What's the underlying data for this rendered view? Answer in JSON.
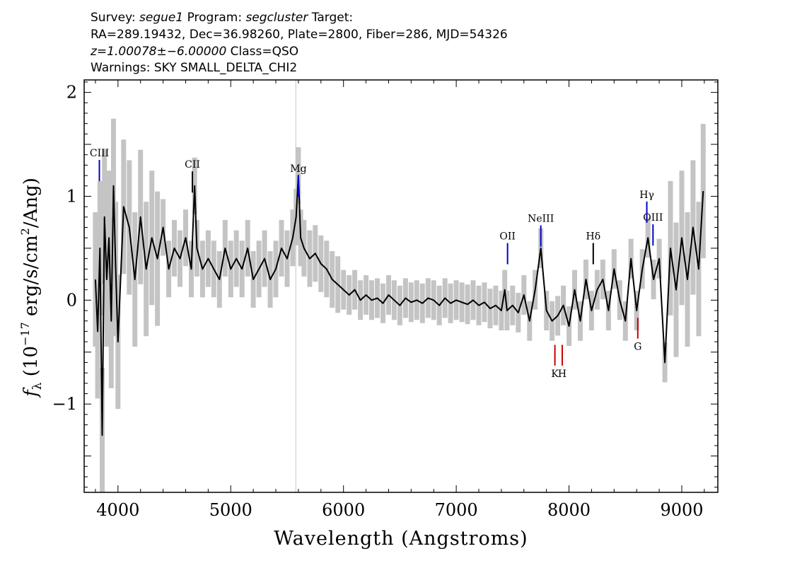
{
  "header": {
    "line1": {
      "p1": "Survey: ",
      "survey": "segue1",
      "p2": " Program: ",
      "program": "segcluster",
      "p3": " Target:"
    },
    "line2": "RA=289.19432, Dec=36.98260, Plate=2800, Fiber=286, MJD=54326",
    "line3": {
      "z": "z=1.00078±−6.00000",
      "cls": " Class=QSO"
    },
    "line4": "Warnings: SKY SMALL_DELTA_CHI2"
  },
  "chart_data": {
    "type": "line",
    "title": "",
    "xlabel": "Wavelength (Angstroms)",
    "ylabel_parts": {
      "f": "f",
      "sub": "λ",
      "pre": " (10",
      "exp": "−17",
      "mid": " erg/s/cm",
      "exp2": "2",
      "post": "/Ang)"
    },
    "xlim": [
      3700,
      9320
    ],
    "ylim": [
      -1.85,
      2.12
    ],
    "xticks": [
      4000,
      5000,
      6000,
      7000,
      8000,
      9000
    ],
    "yticks": [
      -1,
      0,
      1,
      2
    ],
    "ytick_labels": [
      "−1",
      "0",
      "1",
      "2"
    ],
    "colors": {
      "flux": "#000000",
      "error": "#c4c4c4",
      "emission": "#0000cc",
      "absorption": "#cc0000",
      "neutral": "#000000",
      "skyline": "#c4c4c4"
    },
    "series": [
      {
        "role": "flux",
        "x": [
          3800,
          3820,
          3840,
          3860,
          3880,
          3900,
          3920,
          3940,
          3960,
          3980,
          4000,
          4050,
          4100,
          4150,
          4200,
          4250,
          4300,
          4350,
          4400,
          4450,
          4500,
          4550,
          4600,
          4650,
          4680,
          4700,
          4750,
          4800,
          4850,
          4900,
          4950,
          5000,
          5050,
          5100,
          5150,
          5200,
          5250,
          5300,
          5350,
          5400,
          5450,
          5500,
          5550,
          5580,
          5600,
          5620,
          5650,
          5700,
          5750,
          5800,
          5850,
          5900,
          5950,
          6000,
          6050,
          6100,
          6150,
          6200,
          6250,
          6300,
          6350,
          6400,
          6450,
          6500,
          6550,
          6600,
          6650,
          6700,
          6750,
          6800,
          6850,
          6900,
          6950,
          7000,
          7050,
          7100,
          7150,
          7200,
          7250,
          7300,
          7350,
          7400,
          7430,
          7450,
          7500,
          7550,
          7600,
          7650,
          7700,
          7750,
          7800,
          7850,
          7900,
          7950,
          8000,
          8050,
          8100,
          8150,
          8200,
          8250,
          8300,
          8350,
          8400,
          8450,
          8500,
          8550,
          8600,
          8650,
          8700,
          8750,
          8800,
          8850,
          8900,
          8950,
          9000,
          9050,
          9100,
          9150,
          9190
        ],
        "y": [
          0.2,
          -0.3,
          0.5,
          -1.3,
          0.8,
          0.2,
          0.6,
          -0.2,
          1.1,
          0.3,
          -0.4,
          0.9,
          0.7,
          0.2,
          0.8,
          0.3,
          0.6,
          0.4,
          0.7,
          0.3,
          0.5,
          0.4,
          0.6,
          0.3,
          1.1,
          0.5,
          0.3,
          0.4,
          0.3,
          0.2,
          0.5,
          0.3,
          0.4,
          0.3,
          0.5,
          0.2,
          0.3,
          0.4,
          0.2,
          0.3,
          0.5,
          0.4,
          0.6,
          0.8,
          1.2,
          0.6,
          0.5,
          0.4,
          0.45,
          0.35,
          0.3,
          0.2,
          0.15,
          0.1,
          0.05,
          0.1,
          0.0,
          0.05,
          0.0,
          0.02,
          -0.03,
          0.05,
          0.0,
          -0.05,
          0.02,
          -0.02,
          0.0,
          -0.03,
          0.02,
          0.0,
          -0.05,
          0.02,
          -0.03,
          0.0,
          -0.02,
          -0.04,
          0.0,
          -0.05,
          -0.02,
          -0.08,
          -0.05,
          -0.1,
          0.1,
          -0.1,
          -0.05,
          -0.12,
          0.05,
          -0.2,
          0.1,
          0.5,
          -0.1,
          -0.2,
          -0.15,
          -0.05,
          -0.25,
          0.1,
          -0.2,
          0.2,
          -0.1,
          0.1,
          0.2,
          -0.1,
          0.3,
          0.0,
          -0.2,
          0.4,
          -0.1,
          0.3,
          0.6,
          0.2,
          0.4,
          -0.6,
          0.5,
          0.1,
          0.6,
          0.2,
          0.7,
          0.3,
          1.05
        ]
      }
    ],
    "line_labels": [
      {
        "label": "CIII",
        "x": 3835,
        "kind": "emission"
      },
      {
        "label": "CII",
        "x": 4660,
        "kind": "neutral"
      },
      {
        "label": "Mg",
        "x": 5600,
        "kind": "emission"
      },
      {
        "label": "OII",
        "x": 7455,
        "kind": "emission"
      },
      {
        "label": "NeIII",
        "x": 7750,
        "kind": "emission"
      },
      {
        "label": "Hδ",
        "x": 8215,
        "kind": "neutral"
      },
      {
        "label": "Hγ",
        "x": 8690,
        "kind": "emission"
      },
      {
        "label": "OIII",
        "x": 8745,
        "kind": "emission"
      },
      {
        "label": "K",
        "x": 7875,
        "kind": "absorption"
      },
      {
        "label": "H",
        "x": 7940,
        "kind": "absorption"
      },
      {
        "label": "G",
        "x": 8610,
        "kind": "absorption"
      }
    ]
  }
}
